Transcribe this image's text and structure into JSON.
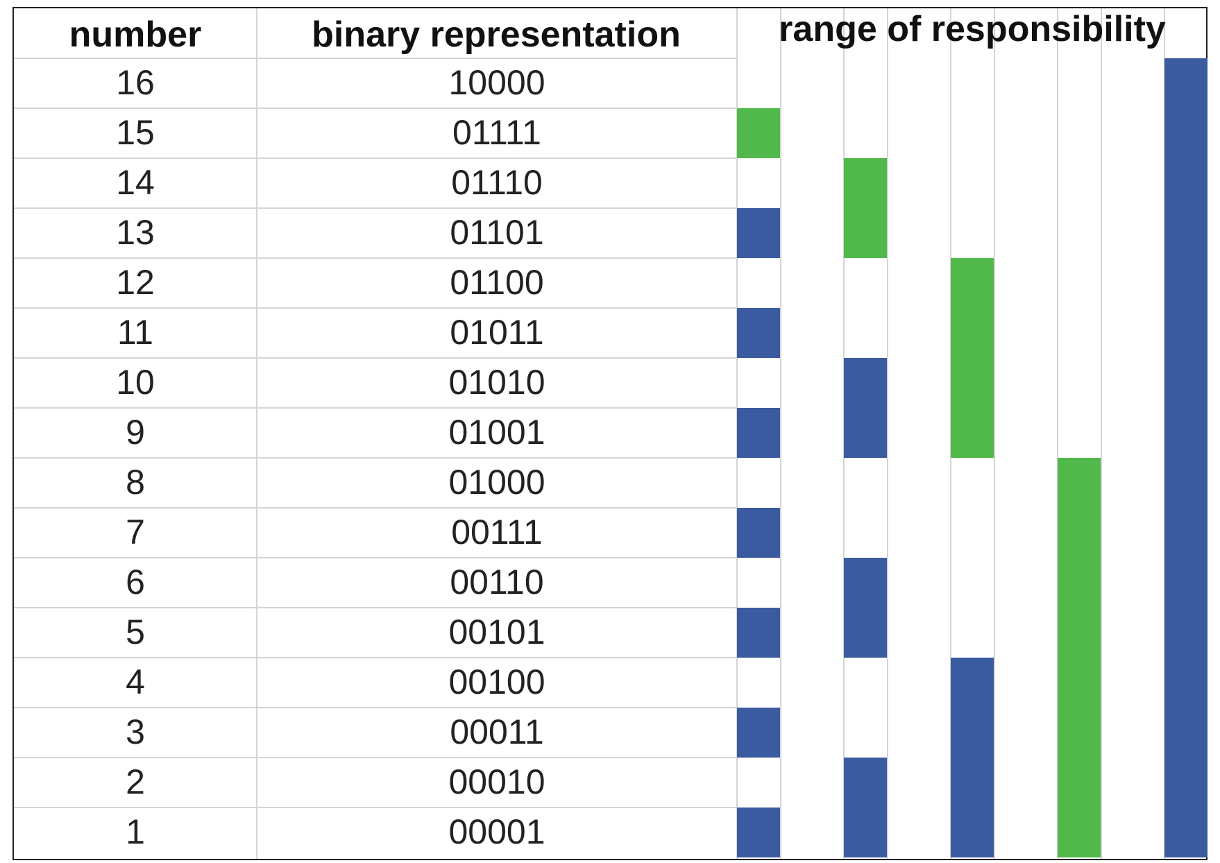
{
  "headers": {
    "number": "number",
    "binary": "binary representation",
    "range": "range of responsibility"
  },
  "rows": [
    {
      "number": "16",
      "binary": "10000"
    },
    {
      "number": "15",
      "binary": "01111"
    },
    {
      "number": "14",
      "binary": "01110"
    },
    {
      "number": "13",
      "binary": "01101"
    },
    {
      "number": "12",
      "binary": "01100"
    },
    {
      "number": "11",
      "binary": "01011"
    },
    {
      "number": "10",
      "binary": "01010"
    },
    {
      "number": "9",
      "binary": "01001"
    },
    {
      "number": "8",
      "binary": "01000"
    },
    {
      "number": "7",
      "binary": "00111"
    },
    {
      "number": "6",
      "binary": "00110"
    },
    {
      "number": "5",
      "binary": "00101"
    },
    {
      "number": "4",
      "binary": "00100"
    },
    {
      "number": "3",
      "binary": "00011"
    },
    {
      "number": "2",
      "binary": "00010"
    },
    {
      "number": "1",
      "binary": "00001"
    }
  ],
  "ranges": [
    {
      "number": 1,
      "from": 1,
      "to": 1,
      "color": "blue"
    },
    {
      "number": 2,
      "from": 1,
      "to": 2,
      "color": "blue"
    },
    {
      "number": 3,
      "from": 3,
      "to": 3,
      "color": "blue"
    },
    {
      "number": 4,
      "from": 1,
      "to": 4,
      "color": "blue"
    },
    {
      "number": 5,
      "from": 5,
      "to": 5,
      "color": "blue"
    },
    {
      "number": 6,
      "from": 5,
      "to": 6,
      "color": "blue"
    },
    {
      "number": 7,
      "from": 7,
      "to": 7,
      "color": "blue"
    },
    {
      "number": 8,
      "from": 1,
      "to": 8,
      "color": "green"
    },
    {
      "number": 9,
      "from": 9,
      "to": 9,
      "color": "blue"
    },
    {
      "number": 10,
      "from": 9,
      "to": 10,
      "color": "blue"
    },
    {
      "number": 11,
      "from": 11,
      "to": 11,
      "color": "blue"
    },
    {
      "number": 12,
      "from": 9,
      "to": 12,
      "color": "green"
    },
    {
      "number": 13,
      "from": 13,
      "to": 13,
      "color": "blue"
    },
    {
      "number": 14,
      "from": 13,
      "to": 14,
      "color": "green"
    },
    {
      "number": 15,
      "from": 15,
      "to": 15,
      "color": "green"
    },
    {
      "number": 16,
      "from": 1,
      "to": 16,
      "color": "blue"
    }
  ],
  "colors": {
    "blue": "#3b5ba1",
    "green": "#51b84c",
    "gridline": "#d4d4d4"
  }
}
